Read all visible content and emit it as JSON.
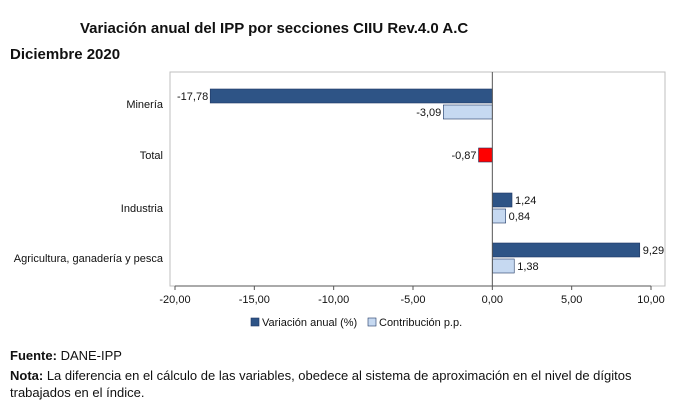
{
  "header": {
    "title": "Variación  anual  del IPP por secciones CIIU Rev.4.0 A.C",
    "subtitle": "Diciembre 2020"
  },
  "chart_data": {
    "type": "bar",
    "orientation": "horizontal",
    "categories": [
      "Minería",
      "Total",
      "Industria",
      "Agricultura, ganadería y pesca"
    ],
    "series": [
      {
        "name": "Variación anual (%)",
        "color": "#2e5486",
        "values": [
          -17.78,
          null,
          1.24,
          9.29
        ],
        "labels": [
          "-17,78",
          null,
          "1,24",
          "9,29"
        ]
      },
      {
        "name": "Contribución p.p.",
        "color": "#c6d9f1",
        "values": [
          -3.09,
          null,
          0.84,
          1.38
        ],
        "labels": [
          "-3,09",
          null,
          "0,84",
          "1,38"
        ]
      }
    ],
    "total": {
      "value": -0.87,
      "label": "-0,87",
      "color": "#ff0000"
    },
    "x_ticks": [
      -20,
      -15,
      -10,
      -5,
      0,
      5,
      10
    ],
    "x_tick_labels": [
      "-20,00",
      "-15,00",
      "-10,00",
      "-5,00",
      "0,00",
      "5,00",
      "10,00"
    ],
    "xlim": [
      -20,
      10
    ],
    "grid": false,
    "legend_position": "bottom"
  },
  "footer": {
    "source_label": "Fuente:",
    "source_text": " DANE-IPP",
    "note_label": "Nota:",
    "note_text": " La diferencia en el cálculo de las variables, obedece al sistema de aproximación en el nivel de dígitos trabajados en el índice."
  }
}
